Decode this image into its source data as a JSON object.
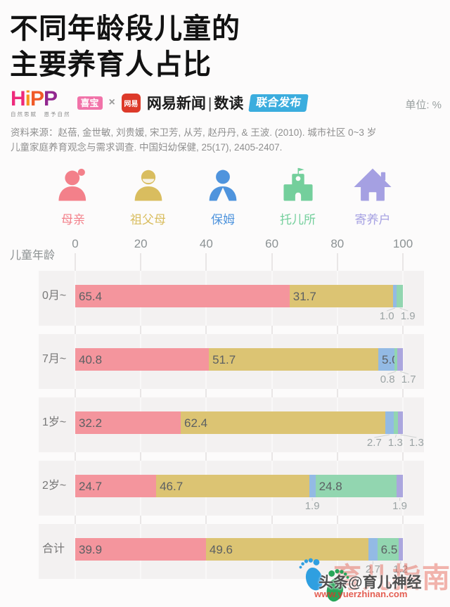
{
  "title": {
    "line1": "不同年龄段儿童的",
    "line2": "主要养育人占比"
  },
  "header": {
    "hipp": {
      "letters": [
        "H",
        "i",
        "P",
        "P"
      ],
      "letter_colors": [
        "#ee2a7b",
        "#f7941d",
        "#f05a28",
        "#92278f"
      ],
      "slogan": "自然思赋　恩予自然",
      "badge": "喜宝"
    },
    "cross": "×",
    "netease_icon": "网易",
    "news_title": "网易新闻",
    "news_divider": "|",
    "news_sub": "数读",
    "joint_badge": "联合发布",
    "unit": "单位: %"
  },
  "source": {
    "line1": "资料来源：赵蓓, 金世敏, 刘贵媛, 宋卫芳, 从芳, 赵丹丹, & 王波. (2010). 城市社区 0~3 岁",
    "line2": "儿童家庭养育观念与需求调查. 中国妇幼保健, 25(17), 2405-2407."
  },
  "legend": [
    {
      "label": "母亲",
      "icon": "mother-icon",
      "color": "#f3808a"
    },
    {
      "label": "祖父母",
      "icon": "grandparents-icon",
      "color": "#d9bd5f"
    },
    {
      "label": "保姆",
      "icon": "nanny-icon",
      "color": "#4f94dd"
    },
    {
      "label": "托儿所",
      "icon": "nursery-icon",
      "color": "#74cf9c"
    },
    {
      "label": "寄养户",
      "icon": "foster-home-icon",
      "color": "#a5a0e2"
    }
  ],
  "chart_data": {
    "type": "bar",
    "stacked": true,
    "orientation": "horizontal",
    "title": "不同年龄段儿童的主要养育人占比",
    "unit": "%",
    "axis_title": "儿童年龄",
    "x_ticks": [
      0,
      20,
      40,
      60,
      80,
      100
    ],
    "xlim": [
      0,
      100
    ],
    "grid": true,
    "legend_position": "top",
    "series": [
      {
        "name": "母亲",
        "key": "mother",
        "color": "#f4959d"
      },
      {
        "name": "祖父母",
        "key": "grandparents",
        "color": "#dcc473"
      },
      {
        "name": "保姆",
        "key": "nanny",
        "color": "#93bae4"
      },
      {
        "name": "托儿所",
        "key": "nursery",
        "color": "#92d6b0"
      },
      {
        "name": "寄养户",
        "key": "foster",
        "color": "#aba6de"
      }
    ],
    "categories": [
      "0月~",
      "7月~",
      "1岁~",
      "2岁~",
      "合计"
    ],
    "rows": [
      {
        "category": "0月~",
        "values": [
          65.4,
          31.7,
          1.0,
          1.9,
          0
        ]
      },
      {
        "category": "7月~",
        "values": [
          40.8,
          51.7,
          5.0,
          0.8,
          1.7
        ]
      },
      {
        "category": "1岁~",
        "values": [
          32.2,
          62.4,
          2.7,
          1.3,
          1.3
        ]
      },
      {
        "category": "2岁~",
        "values": [
          24.7,
          46.7,
          1.9,
          24.8,
          1.9
        ]
      },
      {
        "category": "合计",
        "values": [
          39.9,
          49.6,
          2.7,
          6.5,
          1.2
        ]
      }
    ],
    "label_threshold_inside": 5,
    "value_label_color": "#5c6063",
    "callout_label_color": "#9ba3a4"
  },
  "watermark": {
    "overlay": "育儿指南",
    "handle": "头条@育儿神经",
    "url": "www.yuerzhinan.com"
  }
}
